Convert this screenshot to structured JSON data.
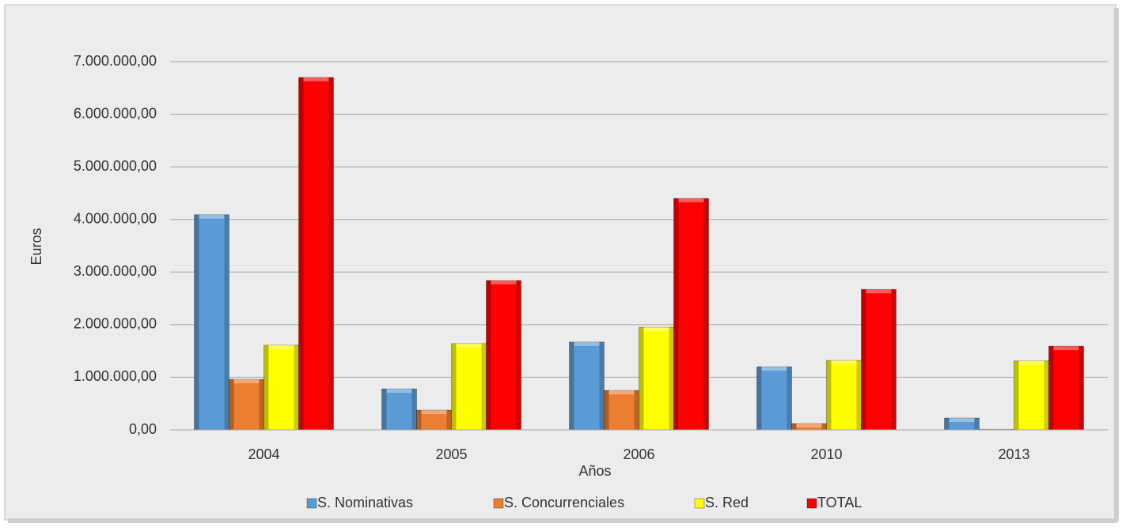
{
  "chart_data": {
    "type": "bar",
    "categories": [
      "2004",
      "2005",
      "2006",
      "2010",
      "2013"
    ],
    "x_label": "Años",
    "y_label": "Euros",
    "series": [
      {
        "name": "S. Nominativas",
        "color": "#5b9bd5",
        "values": [
          4090000,
          780000,
          1670000,
          1200000,
          225000
        ]
      },
      {
        "name": "S. Concurrenciales",
        "color": "#ed7d31",
        "values": [
          960000,
          375000,
          750000,
          120000,
          10000
        ]
      },
      {
        "name": "S. Red",
        "color": "#ffff00",
        "values": [
          1610000,
          1640000,
          1950000,
          1320000,
          1310000
        ]
      },
      {
        "name": "TOTAL",
        "color": "#ff0000",
        "values": [
          6700000,
          2840000,
          4400000,
          2670000,
          1590000
        ]
      }
    ],
    "ylim": [
      0,
      7000000
    ],
    "yticks": [
      {
        "value": 0,
        "label": "0,00"
      },
      {
        "value": 1000000,
        "label": "1.000.000,00"
      },
      {
        "value": 2000000,
        "label": "2.000.000,00"
      },
      {
        "value": 3000000,
        "label": "3.000.000,00"
      },
      {
        "value": 4000000,
        "label": "4.000.000,00"
      },
      {
        "value": 5000000,
        "label": "5.000.000,00"
      },
      {
        "value": 6000000,
        "label": "6.000.000,00"
      },
      {
        "value": 7000000,
        "label": "7.000.000,00"
      }
    ],
    "grid": true,
    "legend": "bottom"
  }
}
